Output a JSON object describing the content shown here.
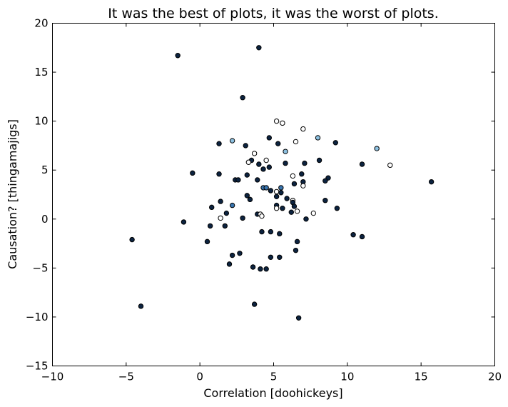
{
  "chart_data": {
    "type": "scatter",
    "title": "It was the best of plots, it was the worst of plots.",
    "xlabel": "Correlation [doohickeys]",
    "ylabel": "Causation? [thingamajigs]",
    "xlim": [
      -10,
      20
    ],
    "ylim": [
      -15,
      20
    ],
    "x_ticks": [
      -10,
      -5,
      0,
      5,
      10,
      15,
      20
    ],
    "y_ticks": [
      -15,
      -10,
      -5,
      0,
      5,
      10,
      15,
      20
    ],
    "x_tick_labels": [
      "−10",
      "−5",
      "0",
      "5",
      "10",
      "15",
      "20"
    ],
    "y_tick_labels": [
      "−15",
      "−10",
      "−5",
      "0",
      "5",
      "10",
      "15",
      "20"
    ],
    "grid": false,
    "legend": "none",
    "colors": {
      "dark": "#0c2340",
      "mid": "#3a76b0",
      "light": "#8cc0e0",
      "white": "#ffffff"
    },
    "points": [
      {
        "x": -1.5,
        "y": 16.7,
        "c": "dark"
      },
      {
        "x": 4.0,
        "y": 17.5,
        "c": "dark"
      },
      {
        "x": 2.9,
        "y": 12.4,
        "c": "dark"
      },
      {
        "x": 5.2,
        "y": 10.0,
        "c": "white"
      },
      {
        "x": 5.6,
        "y": 9.8,
        "c": "white"
      },
      {
        "x": 7.0,
        "y": 9.2,
        "c": "white"
      },
      {
        "x": 4.7,
        "y": 8.3,
        "c": "dark"
      },
      {
        "x": 8.0,
        "y": 8.3,
        "c": "light"
      },
      {
        "x": 2.2,
        "y": 8.0,
        "c": "light"
      },
      {
        "x": 6.5,
        "y": 7.9,
        "c": "white"
      },
      {
        "x": 1.3,
        "y": 7.7,
        "c": "dark"
      },
      {
        "x": 5.3,
        "y": 7.7,
        "c": "dark"
      },
      {
        "x": 9.2,
        "y": 7.8,
        "c": "dark"
      },
      {
        "x": 3.1,
        "y": 7.5,
        "c": "dark"
      },
      {
        "x": 12.0,
        "y": 7.2,
        "c": "light"
      },
      {
        "x": 5.8,
        "y": 6.9,
        "c": "light"
      },
      {
        "x": 3.7,
        "y": 6.7,
        "c": "white"
      },
      {
        "x": 3.5,
        "y": 6.0,
        "c": "dark"
      },
      {
        "x": 4.5,
        "y": 6.0,
        "c": "white"
      },
      {
        "x": 8.1,
        "y": 6.0,
        "c": "dark"
      },
      {
        "x": 3.3,
        "y": 5.8,
        "c": "white"
      },
      {
        "x": 4.0,
        "y": 5.6,
        "c": "dark"
      },
      {
        "x": 5.8,
        "y": 5.7,
        "c": "dark"
      },
      {
        "x": 7.1,
        "y": 5.7,
        "c": "dark"
      },
      {
        "x": 11.0,
        "y": 5.6,
        "c": "dark"
      },
      {
        "x": 12.9,
        "y": 5.5,
        "c": "white"
      },
      {
        "x": 4.7,
        "y": 5.3,
        "c": "dark"
      },
      {
        "x": 4.3,
        "y": 5.1,
        "c": "dark"
      },
      {
        "x": -0.5,
        "y": 4.7,
        "c": "dark"
      },
      {
        "x": 1.3,
        "y": 4.6,
        "c": "dark"
      },
      {
        "x": 3.2,
        "y": 4.5,
        "c": "dark"
      },
      {
        "x": 6.9,
        "y": 4.6,
        "c": "dark"
      },
      {
        "x": 6.3,
        "y": 4.4,
        "c": "white"
      },
      {
        "x": 8.7,
        "y": 4.2,
        "c": "dark"
      },
      {
        "x": 2.4,
        "y": 4.0,
        "c": "dark"
      },
      {
        "x": 2.6,
        "y": 4.0,
        "c": "dark"
      },
      {
        "x": 3.9,
        "y": 4.0,
        "c": "dark"
      },
      {
        "x": 7.0,
        "y": 3.8,
        "c": "dark"
      },
      {
        "x": 8.5,
        "y": 3.9,
        "c": "dark"
      },
      {
        "x": 15.7,
        "y": 3.8,
        "c": "dark"
      },
      {
        "x": 6.4,
        "y": 3.6,
        "c": "dark"
      },
      {
        "x": 7.0,
        "y": 3.4,
        "c": "white"
      },
      {
        "x": 4.3,
        "y": 3.2,
        "c": "mid"
      },
      {
        "x": 4.5,
        "y": 3.2,
        "c": "mid"
      },
      {
        "x": 5.5,
        "y": 3.2,
        "c": "mid"
      },
      {
        "x": 4.8,
        "y": 2.9,
        "c": "dark"
      },
      {
        "x": 5.2,
        "y": 2.8,
        "c": "white"
      },
      {
        "x": 5.5,
        "y": 2.7,
        "c": "dark"
      },
      {
        "x": 3.2,
        "y": 2.4,
        "c": "dark"
      },
      {
        "x": 5.2,
        "y": 2.3,
        "c": "dark"
      },
      {
        "x": 5.9,
        "y": 2.1,
        "c": "dark"
      },
      {
        "x": 3.4,
        "y": 2.0,
        "c": "dark"
      },
      {
        "x": 6.3,
        "y": 1.9,
        "c": "white"
      },
      {
        "x": 8.5,
        "y": 1.9,
        "c": "dark"
      },
      {
        "x": 1.4,
        "y": 1.8,
        "c": "dark"
      },
      {
        "x": 6.3,
        "y": 1.7,
        "c": "dark"
      },
      {
        "x": 2.2,
        "y": 1.4,
        "c": "mid"
      },
      {
        "x": 5.2,
        "y": 1.4,
        "c": "dark"
      },
      {
        "x": 6.4,
        "y": 1.3,
        "c": "dark"
      },
      {
        "x": 0.8,
        "y": 1.2,
        "c": "dark"
      },
      {
        "x": 5.2,
        "y": 1.1,
        "c": "white"
      },
      {
        "x": 5.6,
        "y": 1.1,
        "c": "dark"
      },
      {
        "x": 9.3,
        "y": 1.1,
        "c": "dark"
      },
      {
        "x": 6.6,
        "y": 0.8,
        "c": "white"
      },
      {
        "x": 6.2,
        "y": 0.7,
        "c": "dark"
      },
      {
        "x": 7.7,
        "y": 0.6,
        "c": "white"
      },
      {
        "x": 1.8,
        "y": 0.6,
        "c": "dark"
      },
      {
        "x": 3.9,
        "y": 0.5,
        "c": "dark"
      },
      {
        "x": 4.1,
        "y": 0.5,
        "c": "white"
      },
      {
        "x": 4.2,
        "y": 0.3,
        "c": "white"
      },
      {
        "x": 1.4,
        "y": 0.1,
        "c": "white"
      },
      {
        "x": 2.9,
        "y": 0.1,
        "c": "dark"
      },
      {
        "x": 7.2,
        "y": 0.0,
        "c": "dark"
      },
      {
        "x": -1.1,
        "y": -0.3,
        "c": "dark"
      },
      {
        "x": 0.7,
        "y": -0.7,
        "c": "dark"
      },
      {
        "x": 1.7,
        "y": -0.7,
        "c": "dark"
      },
      {
        "x": 4.2,
        "y": -1.3,
        "c": "dark"
      },
      {
        "x": 4.8,
        "y": -1.3,
        "c": "dark"
      },
      {
        "x": 5.4,
        "y": -1.5,
        "c": "dark"
      },
      {
        "x": 10.4,
        "y": -1.6,
        "c": "dark"
      },
      {
        "x": 11.0,
        "y": -1.8,
        "c": "dark"
      },
      {
        "x": -4.6,
        "y": -2.1,
        "c": "dark"
      },
      {
        "x": 0.5,
        "y": -2.3,
        "c": "dark"
      },
      {
        "x": 6.6,
        "y": -2.3,
        "c": "dark"
      },
      {
        "x": 6.5,
        "y": -3.2,
        "c": "dark"
      },
      {
        "x": 2.7,
        "y": -3.5,
        "c": "dark"
      },
      {
        "x": 2.2,
        "y": -3.7,
        "c": "dark"
      },
      {
        "x": 4.8,
        "y": -3.9,
        "c": "dark"
      },
      {
        "x": 5.4,
        "y": -3.9,
        "c": "dark"
      },
      {
        "x": 2.0,
        "y": -4.6,
        "c": "dark"
      },
      {
        "x": 3.6,
        "y": -4.9,
        "c": "dark"
      },
      {
        "x": 4.1,
        "y": -5.1,
        "c": "dark"
      },
      {
        "x": 4.5,
        "y": -5.1,
        "c": "dark"
      },
      {
        "x": 3.7,
        "y": -8.7,
        "c": "dark"
      },
      {
        "x": -4.0,
        "y": -8.9,
        "c": "dark"
      },
      {
        "x": 6.7,
        "y": -10.1,
        "c": "dark"
      }
    ]
  }
}
